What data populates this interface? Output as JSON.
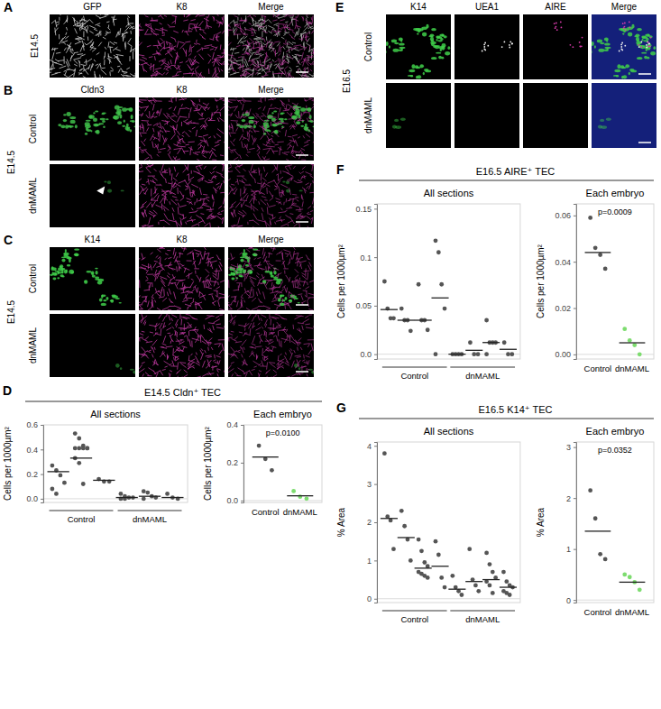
{
  "image_panels": [
    {
      "letter": "A",
      "stage": "E14.5",
      "channels": [
        "GFP",
        "K8",
        "Merge"
      ],
      "rows": []
    },
    {
      "letter": "B",
      "stage": "E14.5",
      "channels": [
        "Cldn3",
        "K8",
        "Merge"
      ],
      "rows": [
        "Control",
        "dnMAML"
      ]
    },
    {
      "letter": "C",
      "stage": "E14.5",
      "channels": [
        "K14",
        "K8",
        "Merge"
      ],
      "rows": [
        "Control",
        "dnMAML"
      ]
    },
    {
      "letter": "E",
      "stage": "E16.5",
      "channels": [
        "K14",
        "UEA1",
        "AIRE",
        "Merge"
      ],
      "rows": [
        "Control",
        "dnMAML"
      ]
    }
  ],
  "chart_data": [
    {
      "type": "strip",
      "panel": "D",
      "title": "E14.5 Cldn⁺ TEC",
      "subplots": [
        {
          "title": "All sections",
          "ylabel": "Cells per 1000µm²",
          "ylim": [
            -0.03,
            0.6
          ],
          "yticks": [
            {
              "value": 0,
              "label": "0.0"
            },
            0.2,
            0.4,
            0.6
          ],
          "groups": [
            {
              "name": "Control",
              "color": "#555555",
              "series": [
                {
                  "values": [
                    0.27,
                    0.23,
                    0.19,
                    0.13,
                    0.08,
                    0.04
                  ],
                  "mean": 0.22
                },
                {
                  "values": [
                    0.53,
                    0.49,
                    0.43,
                    0.41,
                    0.41,
                    0.41,
                    0.41,
                    0.41,
                    0.33,
                    0.29,
                    0.12
                  ],
                  "mean": 0.33
                },
                {
                  "values": [
                    0.16,
                    0.14,
                    0.14
                  ],
                  "mean": 0.15
                }
              ]
            },
            {
              "name": "dnMAML",
              "color": "#555555",
              "series": [
                {
                  "values": [
                    0.04,
                    0.02,
                    0.01,
                    0.01,
                    0.0,
                    0.0
                  ],
                  "mean": 0.01
                },
                {
                  "values": [
                    0.06,
                    0.05,
                    0.02,
                    0.01,
                    0.0
                  ],
                  "mean": 0.02
                },
                {
                  "values": [
                    0.04,
                    0.01,
                    0.0
                  ],
                  "mean": 0.01
                }
              ]
            }
          ]
        },
        {
          "title": "Each embryo",
          "ylabel": "Cells per 1000µm²",
          "ylim": [
            -0.01,
            0.4
          ],
          "yticks": [
            {
              "value": 0,
              "label": "0.0"
            },
            0.2,
            0.4
          ],
          "annotation": "p=0.0100",
          "groups": [
            {
              "name": "Control",
              "color": "#555555",
              "values": [
                0.29,
                0.22,
                0.16
              ],
              "mean": 0.23
            },
            {
              "name": "dnMAML",
              "color": "#7ddc6f",
              "values": [
                0.05,
                0.02,
                0.01
              ],
              "mean": 0.025
            }
          ]
        }
      ]
    },
    {
      "type": "strip",
      "panel": "F",
      "title": "E16.5 AIRE⁺ TEC",
      "subplots": [
        {
          "title": "All sections",
          "ylabel": "Cells per 1000µm²",
          "ylim": [
            -0.005,
            0.155
          ],
          "yticks": [
            {
              "value": 0,
              "label": "0.0"
            },
            0.05,
            0.1,
            0.15
          ],
          "groups": [
            {
              "name": "Control",
              "color": "#555555",
              "series": [
                {
                  "values": [
                    0.075,
                    0.047,
                    0.037,
                    0.037
                  ],
                  "mean": 0.046
                },
                {
                  "values": [
                    0.047,
                    0.035,
                    0.035,
                    0.024
                  ],
                  "mean": 0.035
                },
                {
                  "values": [
                    0.072,
                    0.035,
                    0.035,
                    0.025
                  ],
                  "mean": 0.035
                },
                {
                  "values": [
                    0.117,
                    0.105,
                    0.072,
                    0.047,
                    0.0
                  ],
                  "mean": 0.058
                }
              ]
            },
            {
              "name": "dnMAML",
              "color": "#555555",
              "series": [
                {
                  "values": [
                    0.0,
                    0.0,
                    0.0,
                    0.0
                  ],
                  "mean": 0.0
                },
                {
                  "values": [
                    0.012,
                    0.0,
                    0.0
                  ],
                  "mean": 0.004
                },
                {
                  "values": [
                    0.035,
                    0.012,
                    0.012,
                    0.012,
                    0.0
                  ],
                  "mean": 0.012
                },
                {
                  "values": [
                    0.012,
                    0.0,
                    0.0
                  ],
                  "mean": 0.005
                }
              ]
            }
          ]
        },
        {
          "title": "Each embryo",
          "ylabel": "Cells per 1000µm²",
          "ylim": [
            -0.002,
            0.065
          ],
          "yticks": [
            {
              "value": 0,
              "label": "0.00"
            },
            0.02,
            0.04,
            0.06
          ],
          "annotation": "p=0.0009",
          "groups": [
            {
              "name": "Control",
              "color": "#555555",
              "values": [
                0.059,
                0.046,
                0.043,
                0.037
              ],
              "mean": 0.044
            },
            {
              "name": "dnMAML",
              "color": "#7ddc6f",
              "values": [
                0.011,
                0.006,
                0.004,
                0.0
              ],
              "mean": 0.005
            }
          ]
        }
      ]
    },
    {
      "type": "strip",
      "panel": "G",
      "title": "E16.5 K14⁺ TEC",
      "subplots": [
        {
          "title": "All sections",
          "ylabel": "% Area",
          "ylim": [
            -0.1,
            4.1
          ],
          "yticks": [
            0,
            1,
            2,
            3,
            4
          ],
          "groups": [
            {
              "name": "Control",
              "color": "#555555",
              "series": [
                {
                  "values": [
                    3.8,
                    2.15,
                    2.05,
                    1.3
                  ],
                  "mean": 2.1
                },
                {
                  "values": [
                    2.3,
                    1.9,
                    1.55,
                    1.0
                  ],
                  "mean": 1.6
                },
                {
                  "values": [
                    1.55,
                    1.25,
                    0.95,
                    0.85,
                    0.7,
                    0.65,
                    0.6,
                    0.55
                  ],
                  "mean": 0.8
                },
                {
                  "values": [
                    1.5,
                    1.15,
                    0.55,
                    0.3
                  ],
                  "mean": 0.85
                }
              ]
            },
            {
              "name": "dnMAML",
              "color": "#555555",
              "series": [
                {
                  "values": [
                    0.6,
                    0.3,
                    0.2,
                    0.1
                  ],
                  "mean": 0.25
                },
                {
                  "values": [
                    1.3,
                    0.5,
                    0.35,
                    0.2
                  ],
                  "mean": 0.45
                },
                {
                  "values": [
                    1.2,
                    0.9,
                    0.7,
                    0.55,
                    0.45,
                    0.35,
                    0.15
                  ],
                  "mean": 0.5
                },
                {
                  "values": [
                    0.7,
                    0.45,
                    0.35,
                    0.3,
                    0.2,
                    0.15,
                    0.1
                  ],
                  "mean": 0.3
                }
              ]
            }
          ]
        },
        {
          "title": "Each embryo",
          "ylabel": "% Area",
          "ylim": [
            -0.05,
            3.1
          ],
          "yticks": [
            0,
            1,
            2,
            3
          ],
          "annotation": "p=0.0352",
          "groups": [
            {
              "name": "Control",
              "color": "#555555",
              "values": [
                2.15,
                1.6,
                0.9,
                0.8
              ],
              "mean": 1.35
            },
            {
              "name": "dnMAML",
              "color": "#7ddc6f",
              "values": [
                0.5,
                0.45,
                0.35,
                0.2
              ],
              "mean": 0.35
            }
          ]
        }
      ]
    }
  ]
}
